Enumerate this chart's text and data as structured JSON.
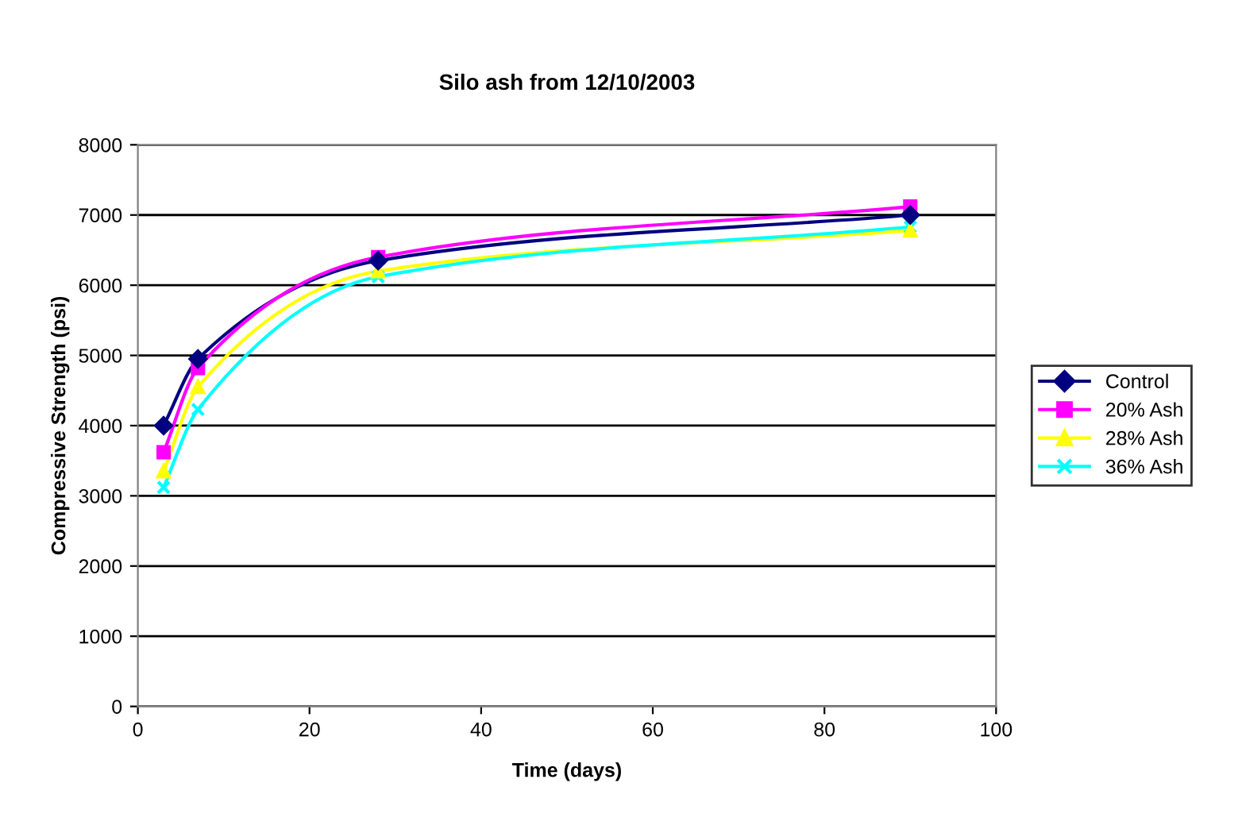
{
  "chart_data": {
    "type": "line",
    "title": "Silo ash from 12/10/2003",
    "xlabel": "Time (days)",
    "ylabel": "Compressive Strength (psi)",
    "x": [
      3,
      7,
      28,
      90
    ],
    "series": [
      {
        "name": "Control",
        "color": "#000080",
        "marker": "diamond",
        "values": [
          4000,
          4950,
          6350,
          7000
        ]
      },
      {
        "name": "20% Ash",
        "color": "#ff00ff",
        "marker": "square",
        "values": [
          3620,
          4820,
          6400,
          7120
        ]
      },
      {
        "name": "28% Ash",
        "color": "#ffff00",
        "marker": "triangle",
        "values": [
          3350,
          4550,
          6200,
          6780
        ]
      },
      {
        "name": "36% Ash",
        "color": "#00ffff",
        "marker": "cross",
        "values": [
          3120,
          4230,
          6120,
          6830
        ]
      }
    ],
    "xlim": [
      0,
      100
    ],
    "xticks": [
      0,
      20,
      40,
      60,
      80,
      100
    ],
    "ylim": [
      0,
      8000
    ],
    "yticks": [
      0,
      1000,
      2000,
      3000,
      4000,
      5000,
      6000,
      7000,
      8000
    ],
    "grid": "y",
    "legend": "right",
    "line_style": "solid"
  }
}
